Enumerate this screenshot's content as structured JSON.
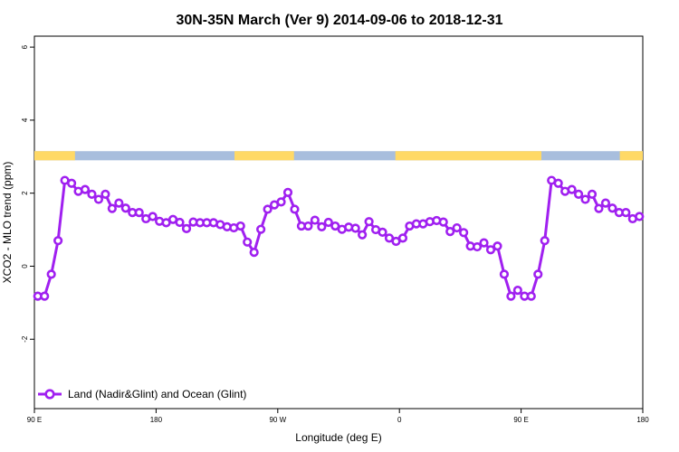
{
  "colors": {
    "series": "#a020f0",
    "land": "#ffd966",
    "ocean": "#a8bedd",
    "point_fill": "#ffffff"
  },
  "chart_data": {
    "type": "line",
    "title": "30N-35N March (Ver 9)   2014-09-06 to 2018-12-31",
    "xlabel": "Longitude (deg E)",
    "ylabel": "XCO2 - MLO trend (ppm)",
    "xlim": [
      90,
      540
    ],
    "ylim": [
      -3.9,
      6.3
    ],
    "x_ticks": [
      {
        "value": 90,
        "label": "90 E"
      },
      {
        "value": 180,
        "label": "180"
      },
      {
        "value": 270,
        "label": "90 W"
      },
      {
        "value": 360,
        "label": "0"
      },
      {
        "value": 450,
        "label": "90 E"
      },
      {
        "value": 540,
        "label": "180"
      }
    ],
    "y_ticks": [
      {
        "value": -2,
        "label": "-2"
      },
      {
        "value": 0,
        "label": "0"
      },
      {
        "value": 2,
        "label": "2"
      },
      {
        "value": 4,
        "label": "4"
      },
      {
        "value": 6,
        "label": "6"
      }
    ],
    "legend": {
      "position": "bottom-left"
    },
    "land_ocean_strip": {
      "y_range": [
        2.9,
        3.15
      ],
      "land_segments": [
        [
          90,
          120
        ],
        [
          238,
          282
        ],
        [
          357,
          465
        ],
        [
          523,
          540
        ]
      ]
    },
    "series": [
      {
        "name": "Land (Nadir&Glint) and Ocean (Glint)",
        "x": [
          92.5,
          97.5,
          102.5,
          107.5,
          112.5,
          117.5,
          122.5,
          127.5,
          132.5,
          137.5,
          142.5,
          147.5,
          152.5,
          157.5,
          162.5,
          167.5,
          172.5,
          177.5,
          182.5,
          187.5,
          192.5,
          197.5,
          202.5,
          207.5,
          212.5,
          217.5,
          222.5,
          227.5,
          232.5,
          237.5,
          242.5,
          247.5,
          252.5,
          257.5,
          262.5,
          267.5,
          272.5,
          277.5,
          282.5,
          287.5,
          292.5,
          297.5,
          302.5,
          307.5,
          312.5,
          317.5,
          322.5,
          327.5,
          332.5,
          337.5,
          342.5,
          347.5,
          352.5,
          357.5,
          362.5,
          367.5,
          372.5,
          377.5,
          382.5,
          387.5,
          392.5,
          397.5,
          402.5,
          407.5,
          412.5,
          417.5,
          422.5,
          427.5,
          432.5,
          437.5,
          442.5,
          447.5,
          452.5,
          457.5,
          462.5,
          467.5,
          472.5,
          477.5,
          482.5,
          487.5,
          492.5,
          497.5,
          502.5,
          507.5,
          512.5,
          517.5,
          522.5,
          527.5,
          532.5,
          537.5
        ],
        "y": [
          -0.82,
          -0.82,
          -0.22,
          0.7,
          2.35,
          2.27,
          2.05,
          2.1,
          1.97,
          1.83,
          1.97,
          1.58,
          1.73,
          1.59,
          1.47,
          1.47,
          1.3,
          1.36,
          1.23,
          1.19,
          1.28,
          1.2,
          1.03,
          1.21,
          1.19,
          1.19,
          1.19,
          1.14,
          1.08,
          1.05,
          1.1,
          0.66,
          0.38,
          1.01,
          1.56,
          1.68,
          1.76,
          2.02,
          1.56,
          1.1,
          1.1,
          1.26,
          1.08,
          1.2,
          1.1,
          1.01,
          1.07,
          1.04,
          0.86,
          1.22,
          1.0,
          0.93,
          0.77,
          0.68,
          0.77,
          1.1,
          1.16,
          1.16,
          1.22,
          1.25,
          1.21,
          0.95,
          1.05,
          0.92,
          0.55,
          0.53,
          0.64,
          0.45,
          0.55,
          -0.22,
          -0.82,
          -0.66,
          -0.82,
          -0.82,
          -0.22,
          0.7,
          2.35,
          2.27,
          2.05,
          2.1,
          1.97,
          1.83,
          1.97,
          1.58,
          1.73,
          1.59,
          1.47,
          1.47,
          1.3,
          1.36
        ]
      }
    ]
  }
}
